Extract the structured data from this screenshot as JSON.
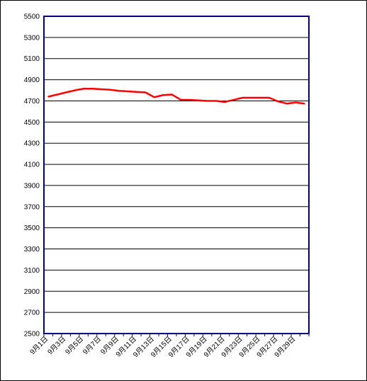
{
  "chart_data": {
    "type": "line",
    "title": "",
    "xlabel": "",
    "ylabel": "",
    "ylim": [
      2500,
      5500
    ],
    "y_ticks": [
      2500,
      2700,
      2900,
      3100,
      3300,
      3500,
      3700,
      3900,
      4100,
      4300,
      4500,
      4700,
      4900,
      5100,
      5300,
      5500
    ],
    "x_tick_labels": [
      "9月1日",
      "9月3日",
      "9月5日",
      "9月7日",
      "9月9日",
      "9月11日",
      "9月13日",
      "9月15日",
      "9月17日",
      "9月19日",
      "9月21日",
      "9月23日",
      "9月25日",
      "9月27日",
      "9月29日"
    ],
    "grid": true,
    "legend": "none",
    "colors": {
      "line": "#ff0000",
      "grid": "#000000",
      "plot_border": "#000080",
      "background": "#ffffff"
    },
    "series": [
      {
        "color": "#ff0000",
        "points": [
          {
            "x": "9月1日",
            "y": 4740
          },
          {
            "x": "9月2日",
            "y": 4760
          },
          {
            "x": "9月3日",
            "y": 4780
          },
          {
            "x": "9月4日",
            "y": 4800
          },
          {
            "x": "9月5日",
            "y": 4815
          },
          {
            "x": "9月6日",
            "y": 4815
          },
          {
            "x": "9月7日",
            "y": 4810
          },
          {
            "x": "9月8日",
            "y": 4805
          },
          {
            "x": "9月9日",
            "y": 4795
          },
          {
            "x": "9月10日",
            "y": 4790
          },
          {
            "x": "9月11日",
            "y": 4785
          },
          {
            "x": "9月12日",
            "y": 4780
          },
          {
            "x": "9月13日",
            "y": 4735
          },
          {
            "x": "9月14日",
            "y": 4755
          },
          {
            "x": "9月15日",
            "y": 4760
          },
          {
            "x": "9月16日",
            "y": 4710
          },
          {
            "x": "9月17日",
            "y": 4710
          },
          {
            "x": "9月18日",
            "y": 4705
          },
          {
            "x": "9月19日",
            "y": 4700
          },
          {
            "x": "9月20日",
            "y": 4700
          },
          {
            "x": "9月21日",
            "y": 4690
          },
          {
            "x": "9月22日",
            "y": 4710
          },
          {
            "x": "9月23日",
            "y": 4730
          },
          {
            "x": "9月24日",
            "y": 4730
          },
          {
            "x": "9月25日",
            "y": 4730
          },
          {
            "x": "9月26日",
            "y": 4730
          },
          {
            "x": "9月27日",
            "y": 4695
          },
          {
            "x": "9月28日",
            "y": 4675
          },
          {
            "x": "9月29日",
            "y": 4685
          },
          {
            "x": "9月30日",
            "y": 4675
          }
        ]
      }
    ]
  }
}
